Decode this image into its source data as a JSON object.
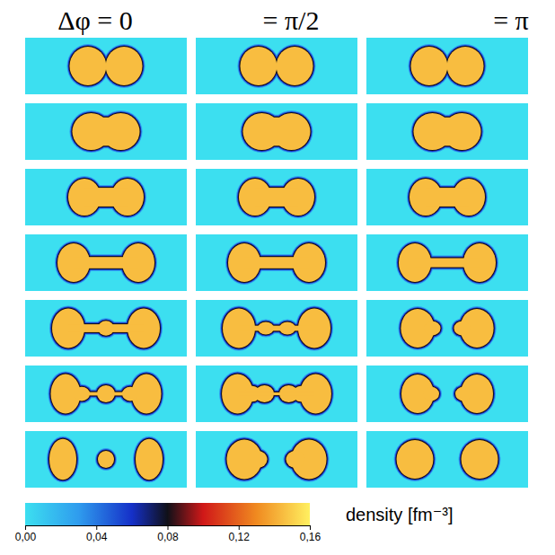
{
  "chart_data": {
    "type": "density-panels",
    "column_titles": [
      "Δφ = 0",
      "= π/2",
      "= π"
    ],
    "xlim": [
      -30,
      30
    ],
    "ylim": [
      -10,
      10
    ],
    "interior_density": 0.145,
    "colorbar": {
      "label": "density [fm⁻³]",
      "range": [
        0,
        0.16
      ],
      "ticks": [
        {
          "value": 0,
          "label": "0,00"
        },
        {
          "value": 0.04,
          "label": "0,04"
        },
        {
          "value": 0.08,
          "label": "0,08"
        },
        {
          "value": 0.12,
          "label": "0,12"
        },
        {
          "value": 0.16,
          "label": "0,16"
        }
      ],
      "stops": [
        0,
        0.03,
        0.06,
        0.08,
        0.1,
        0.13,
        0.16
      ],
      "colors": [
        "#3cdff0",
        "#2f9cee",
        "#1530c8",
        "#101018",
        "#d01818",
        "#f08a20",
        "#fff060"
      ]
    },
    "panels": [
      [
        {
          "fragments": [
            {
              "x": -6.7,
              "y": 0,
              "rx": 6.8,
              "ry": 6.8
            },
            {
              "x": 6.7,
              "y": 0,
              "rx": 6.8,
              "ry": 6.8
            }
          ],
          "necks": []
        },
        {
          "fragments": [
            {
              "x": -6.7,
              "y": 0,
              "rx": 6.8,
              "ry": 6.8
            },
            {
              "x": 6.7,
              "y": 0,
              "rx": 6.8,
              "ry": 6.8
            }
          ],
          "necks": []
        },
        {
          "fragments": [
            {
              "x": -6.7,
              "y": 0,
              "rx": 6.8,
              "ry": 6.8
            },
            {
              "x": 6.7,
              "y": 0,
              "rx": 6.8,
              "ry": 6.8
            }
          ],
          "necks": []
        }
      ],
      [
        {
          "fragments": [
            {
              "x": -5.5,
              "y": 0,
              "rx": 7,
              "ry": 6.5
            },
            {
              "x": 5.5,
              "y": 0,
              "rx": 7,
              "ry": 6.5
            }
          ],
          "necks": [
            {
              "x0": -5.5,
              "x1": 5.5,
              "half_width": 5
            }
          ]
        },
        {
          "fragments": [
            {
              "x": -5.5,
              "y": 0,
              "rx": 7,
              "ry": 6.5
            },
            {
              "x": 5.5,
              "y": 0,
              "rx": 7,
              "ry": 6.5
            }
          ],
          "necks": [
            {
              "x0": -5.5,
              "x1": 5.5,
              "half_width": 5
            }
          ]
        },
        {
          "fragments": [
            {
              "x": -5.5,
              "y": 0,
              "rx": 7,
              "ry": 6.5
            },
            {
              "x": 5.5,
              "y": 0,
              "rx": 7,
              "ry": 6.5
            }
          ],
          "necks": [
            {
              "x0": -5.5,
              "x1": 5.5,
              "half_width": 5
            }
          ]
        }
      ],
      [
        {
          "fragments": [
            {
              "x": -8,
              "y": 0,
              "rx": 6,
              "ry": 6.5
            },
            {
              "x": 8,
              "y": 0,
              "rx": 6,
              "ry": 6.5
            }
          ],
          "necks": [
            {
              "x0": -8,
              "x1": 8,
              "half_width": 3.3
            }
          ]
        },
        {
          "fragments": [
            {
              "x": -8,
              "y": 0,
              "rx": 6,
              "ry": 6.5
            },
            {
              "x": 8,
              "y": 0,
              "rx": 6,
              "ry": 6.5
            }
          ],
          "necks": [
            {
              "x0": -8,
              "x1": 8,
              "half_width": 3.3
            }
          ]
        },
        {
          "fragments": [
            {
              "x": -8,
              "y": 0,
              "rx": 6,
              "ry": 6.5
            },
            {
              "x": 8,
              "y": 0,
              "rx": 6,
              "ry": 6.5
            }
          ],
          "necks": [
            {
              "x0": -8,
              "x1": 8,
              "half_width": 3.3
            }
          ]
        }
      ],
      [
        {
          "fragments": [
            {
              "x": -12,
              "y": 0,
              "rx": 6,
              "ry": 6.8
            },
            {
              "x": 12,
              "y": 0,
              "rx": 6,
              "ry": 6.8
            }
          ],
          "necks": [
            {
              "x0": -12,
              "x1": 12,
              "half_width": 2
            }
          ]
        },
        {
          "fragments": [
            {
              "x": -12,
              "y": 0,
              "rx": 6,
              "ry": 6.8
            },
            {
              "x": 12,
              "y": 0,
              "rx": 6,
              "ry": 6.8
            }
          ],
          "necks": [
            {
              "x0": -12,
              "x1": 12,
              "half_width": 2
            }
          ]
        },
        {
          "fragments": [
            {
              "x": -12,
              "y": 0,
              "rx": 6,
              "ry": 6.8
            },
            {
              "x": 12,
              "y": 0,
              "rx": 6,
              "ry": 6.8
            }
          ],
          "necks": [
            {
              "x0": -12,
              "x1": 12,
              "half_width": 1.6
            }
          ]
        }
      ],
      [
        {
          "fragments": [
            {
              "x": -14,
              "y": 0,
              "rx": 6,
              "ry": 7
            },
            {
              "x": 14,
              "y": 0,
              "rx": 6,
              "ry": 7
            },
            {
              "x": 0,
              "y": 0,
              "rx": 3,
              "ry": 2.6
            }
          ],
          "necks": [
            {
              "x0": -14,
              "x1": 14,
              "half_width": 1.4
            }
          ]
        },
        {
          "fragments": [
            {
              "x": -14,
              "y": 0,
              "rx": 6,
              "ry": 7
            },
            {
              "x": 14,
              "y": 0,
              "rx": 6,
              "ry": 7
            },
            {
              "x": -4,
              "y": 0,
              "rx": 3,
              "ry": 2.2
            },
            {
              "x": 4,
              "y": 0,
              "rx": 3,
              "ry": 2.2
            }
          ],
          "necks": [
            {
              "x0": -14,
              "x1": 14,
              "half_width": 0.9
            }
          ]
        },
        {
          "fragments": [
            {
              "x": -11,
              "y": 0,
              "rx": 6.2,
              "ry": 6.8
            },
            {
              "x": 11,
              "y": 0,
              "rx": 6.2,
              "ry": 6.8
            },
            {
              "x": -5.5,
              "y": 0,
              "rx": 3,
              "ry": 2.5
            },
            {
              "x": 5.5,
              "y": 0,
              "rx": 3,
              "ry": 2.5
            }
          ],
          "necks": []
        }
      ],
      [
        {
          "fragments": [
            {
              "x": -15,
              "y": 0,
              "rx": 5.5,
              "ry": 7
            },
            {
              "x": 15,
              "y": 0,
              "rx": 5.5,
              "ry": 7
            },
            {
              "x": 0,
              "y": 0,
              "rx": 3.3,
              "ry": 3
            },
            {
              "x": -9,
              "y": 0,
              "rx": 3,
              "ry": 2.5
            },
            {
              "x": 9,
              "y": 0,
              "rx": 3,
              "ry": 2.5
            }
          ],
          "necks": [
            {
              "x0": -15,
              "x1": 15,
              "half_width": 0.6
            }
          ]
        },
        {
          "fragments": [
            {
              "x": -14.5,
              "y": 0,
              "rx": 5.8,
              "ry": 7
            },
            {
              "x": 14.5,
              "y": 0,
              "rx": 5.8,
              "ry": 7
            },
            {
              "x": -4.5,
              "y": 0,
              "rx": 3.5,
              "ry": 3
            },
            {
              "x": 4.5,
              "y": 0,
              "rx": 3.5,
              "ry": 3
            },
            {
              "x": -9,
              "y": 0,
              "rx": 3,
              "ry": 2.8
            },
            {
              "x": 9,
              "y": 0,
              "rx": 3,
              "ry": 2.8
            }
          ],
          "necks": [
            {
              "x0": -14,
              "x1": 14,
              "half_width": 0.5
            }
          ]
        },
        {
          "fragments": [
            {
              "x": -11,
              "y": 0,
              "rx": 6,
              "ry": 6.8
            },
            {
              "x": 11,
              "y": 0,
              "rx": 6,
              "ry": 6.8
            },
            {
              "x": -6,
              "y": 0,
              "rx": 3,
              "ry": 2.5
            },
            {
              "x": 6,
              "y": 0,
              "rx": 3,
              "ry": 2.5
            }
          ],
          "necks": []
        }
      ],
      [
        {
          "fragments": [
            {
              "x": -16,
              "y": 0,
              "rx": 5,
              "ry": 7.2
            },
            {
              "x": 16,
              "y": 0,
              "rx": 5,
              "ry": 7.2
            },
            {
              "x": 0,
              "y": 0,
              "rx": 3,
              "ry": 3
            }
          ],
          "necks": []
        },
        {
          "fragments": [
            {
              "x": -12,
              "y": 0,
              "rx": 6.5,
              "ry": 7
            },
            {
              "x": 12,
              "y": 0,
              "rx": 6.5,
              "ry": 7
            },
            {
              "x": -7,
              "y": 0,
              "rx": 3.5,
              "ry": 3
            },
            {
              "x": 7,
              "y": 0,
              "rx": 3.5,
              "ry": 3
            }
          ],
          "necks": []
        },
        {
          "fragments": [
            {
              "x": -12,
              "y": 0,
              "rx": 6.8,
              "ry": 6.8
            },
            {
              "x": 12,
              "y": 0,
              "rx": 6.8,
              "ry": 6.8
            }
          ],
          "necks": []
        }
      ]
    ]
  }
}
